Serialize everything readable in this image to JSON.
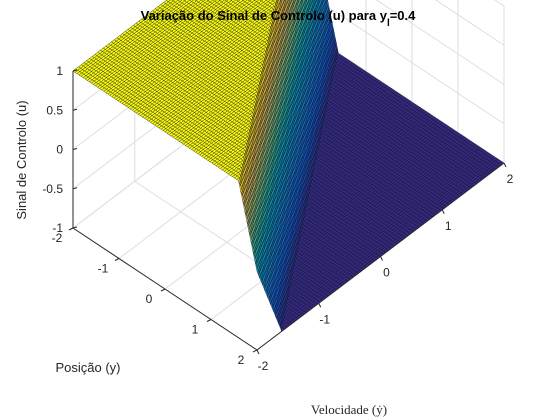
{
  "chart_data": {
    "type": "surface",
    "title": "Variação do Sinal de Controlo (u) para y",
    "title_subscript": "l",
    "title_suffix": "=0.4",
    "xlabel": "Velocidade (ẏ)",
    "ylabel": "Posição (y)",
    "zlabel": "Sinal de Controlo (u)",
    "xlim": [
      -2,
      2
    ],
    "ylim": [
      -2,
      2
    ],
    "zlim": [
      -1,
      1
    ],
    "x_ticks": [
      "-2",
      "-1",
      "0",
      "1",
      "2"
    ],
    "y_ticks": [
      "-2",
      "-1",
      "0",
      "1",
      "2"
    ],
    "z_ticks": [
      "-1",
      "-0.5",
      "0",
      "0.5",
      "1"
    ],
    "boundary_layer": 0.4,
    "function": "u = sat(-(y + ẏ) / 0.4), saturated to [-1, 1]",
    "grid": true,
    "colormap": "parula"
  }
}
